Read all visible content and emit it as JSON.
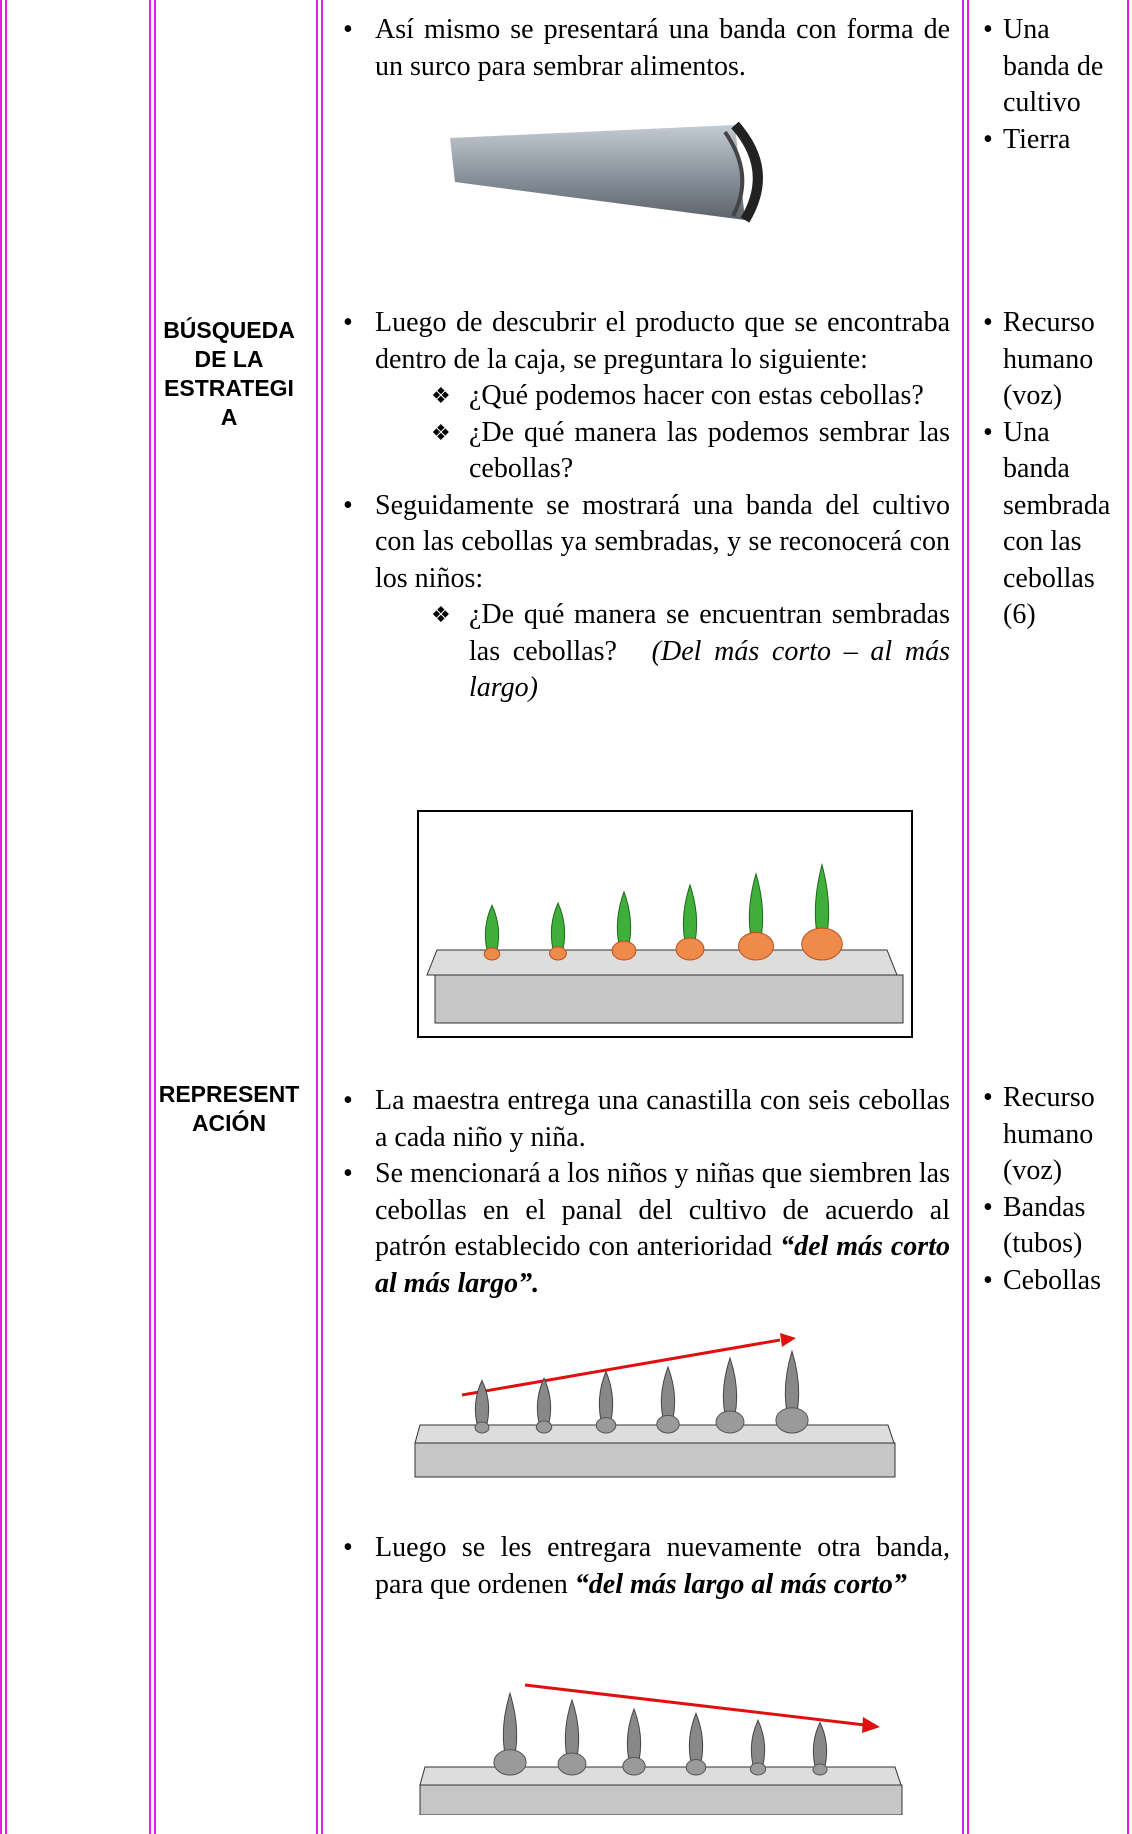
{
  "intro": {
    "bullets": [
      "Así mismo se presentará una banda con forma de un surco para sembrar alimentos."
    ],
    "resources": [
      "Una banda de cultivo",
      "Tierra"
    ]
  },
  "search": {
    "stage": "BÚSQUEDA DE LA ESTRATEGIA",
    "items": [
      {
        "text": "Luego de descubrir el producto que se encontraba dentro de la caja, se preguntara lo siguiente:",
        "questions": [
          {
            "text": "¿Qué podemos hacer con estas cebollas?"
          },
          {
            "text": "¿De qué manera las podemos sembrar las cebollas?"
          }
        ]
      },
      {
        "text": "Seguidamente se mostrará una banda del cultivo con las cebollas ya sembradas, y se reconocerá con los niños:",
        "questions": [
          {
            "text": "¿De qué manera se encuentran sembradas las cebollas?",
            "note": "(Del más corto – al más largo)"
          }
        ]
      }
    ],
    "resources": [
      "Recurso humano (voz)",
      "Una banda sembrada con las cebollas (6)"
    ]
  },
  "representation": {
    "stage": "REPRESENTACIÓN",
    "items": [
      {
        "text": "La maestra entrega una canastilla con seis cebollas a cada niño y niña."
      },
      {
        "text": "Se mencionará a los niños y niñas que siembren las cebollas en el panal del cultivo de acuerdo al patrón establecido con anterioridad",
        "emphasis": "“del más corto al más largo”."
      },
      {
        "text": "Luego se les entregara nuevamente otra banda, para que ordenen",
        "emphasis": "“del más largo al más corto”"
      }
    ],
    "resources": [
      "Recurso humano (voz)",
      "Bandas (tubos)",
      "Cebollas"
    ]
  }
}
